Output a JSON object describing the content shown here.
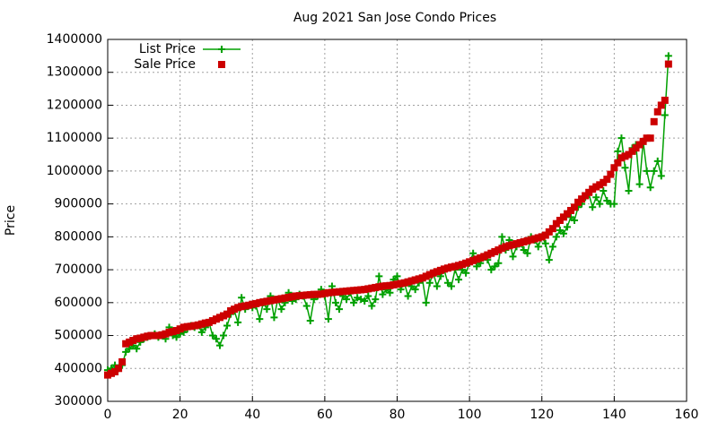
{
  "chart_data": {
    "type": "line",
    "title": "Aug 2021 San Jose Condo Prices",
    "ylabel": "Price",
    "x": [
      0,
      1,
      2,
      3,
      4,
      5,
      6,
      7,
      8,
      9,
      10,
      11,
      12,
      13,
      14,
      15,
      16,
      17,
      18,
      19,
      20,
      21,
      22,
      23,
      24,
      25,
      26,
      27,
      28,
      29,
      30,
      31,
      32,
      33,
      34,
      35,
      36,
      37,
      38,
      39,
      40,
      41,
      42,
      43,
      44,
      45,
      46,
      47,
      48,
      49,
      50,
      51,
      52,
      53,
      54,
      55,
      56,
      57,
      58,
      59,
      60,
      61,
      62,
      63,
      64,
      65,
      66,
      67,
      68,
      69,
      70,
      71,
      72,
      73,
      74,
      75,
      76,
      77,
      78,
      79,
      80,
      81,
      82,
      83,
      84,
      85,
      86,
      87,
      88,
      89,
      90,
      91,
      92,
      93,
      94,
      95,
      96,
      97,
      98,
      99,
      100,
      101,
      102,
      103,
      104,
      105,
      106,
      107,
      108,
      109,
      110,
      111,
      112,
      113,
      114,
      115,
      116,
      117,
      118,
      119,
      120,
      121,
      122,
      123,
      124,
      125,
      126,
      127,
      128,
      129,
      130,
      131,
      132,
      133,
      134,
      135,
      136,
      137,
      138,
      139,
      140,
      141,
      142,
      143,
      144,
      145,
      146,
      147,
      148,
      149,
      150,
      151,
      152,
      153,
      154,
      155
    ],
    "series": [
      {
        "name": "List Price",
        "color": "#00a000",
        "line": true,
        "marker": "plus",
        "values": [
          395000,
          400000,
          410000,
          400000,
          410000,
          450000,
          460000,
          470000,
          460000,
          480000,
          490000,
          495000,
          500000,
          505000,
          495000,
          500000,
          490000,
          525000,
          500000,
          495000,
          505000,
          510000,
          520000,
          530000,
          525000,
          530000,
          510000,
          525000,
          540000,
          500000,
          490000,
          470000,
          500000,
          530000,
          565000,
          575000,
          540000,
          615000,
          580000,
          590000,
          585000,
          590000,
          550000,
          600000,
          580000,
          620000,
          555000,
          610000,
          580000,
          600000,
          630000,
          605000,
          610000,
          625000,
          620000,
          590000,
          545000,
          610000,
          620000,
          640000,
          620000,
          550000,
          650000,
          600000,
          580000,
          620000,
          610000,
          630000,
          600000,
          615000,
          610000,
          605000,
          620000,
          590000,
          610000,
          680000,
          625000,
          640000,
          630000,
          670000,
          680000,
          640000,
          660000,
          620000,
          650000,
          640000,
          660000,
          670000,
          600000,
          660000,
          690000,
          650000,
          680000,
          700000,
          660000,
          650000,
          700000,
          670000,
          700000,
          690000,
          720000,
          750000,
          710000,
          720000,
          740000,
          730000,
          700000,
          710000,
          720000,
          800000,
          760000,
          790000,
          740000,
          770000,
          780000,
          760000,
          750000,
          800000,
          790000,
          770000,
          800000,
          780000,
          730000,
          770000,
          800000,
          820000,
          810000,
          830000,
          860000,
          850000,
          890000,
          900000,
          920000,
          930000,
          890000,
          920000,
          900000,
          940000,
          910000,
          900000,
          900000,
          1060000,
          1100000,
          1010000,
          940000,
          1070000,
          1080000,
          960000,
          1090000,
          1000000,
          950000,
          1000000,
          1030000,
          985000,
          1170000,
          1350000
        ]
      },
      {
        "name": "Sale Price",
        "color": "#cc0000",
        "line": false,
        "marker": "square",
        "values": [
          380000,
          385000,
          390000,
          400000,
          420000,
          475000,
          480000,
          485000,
          490000,
          492000,
          495000,
          498000,
          500000,
          500000,
          500000,
          502000,
          505000,
          510000,
          512000,
          515000,
          520000,
          525000,
          527000,
          528000,
          530000,
          532000,
          535000,
          538000,
          540000,
          545000,
          550000,
          555000,
          560000,
          565000,
          575000,
          580000,
          585000,
          588000,
          590000,
          592000,
          595000,
          597000,
          600000,
          602000,
          604000,
          606000,
          608000,
          610000,
          612000,
          614000,
          616000,
          618000,
          620000,
          621000,
          622000,
          623000,
          624000,
          625000,
          625000,
          626000,
          628000,
          630000,
          631000,
          632000,
          633000,
          634000,
          635000,
          636000,
          637000,
          638000,
          639000,
          640000,
          642000,
          644000,
          646000,
          648000,
          650000,
          651000,
          652000,
          654000,
          656000,
          658000,
          660000,
          663000,
          666000,
          669000,
          672000,
          675000,
          680000,
          685000,
          690000,
          694000,
          698000,
          702000,
          705000,
          708000,
          710000,
          713000,
          716000,
          720000,
          724000,
          728000,
          732000,
          736000,
          740000,
          745000,
          750000,
          755000,
          760000,
          765000,
          770000,
          773000,
          776000,
          779000,
          782000,
          785000,
          788000,
          791000,
          794000,
          797000,
          800000,
          805000,
          815000,
          825000,
          840000,
          850000,
          860000,
          870000,
          880000,
          890000,
          905000,
          915000,
          925000,
          935000,
          945000,
          952000,
          958000,
          965000,
          975000,
          990000,
          1010000,
          1025000,
          1040000,
          1045000,
          1050000,
          1060000,
          1070000,
          1080000,
          1090000,
          1100000,
          1100000,
          1150000,
          1180000,
          1200000,
          1215000,
          1325000
        ]
      }
    ],
    "xlim": [
      0,
      160
    ],
    "xticks": [
      0,
      20,
      40,
      60,
      80,
      100,
      120,
      140,
      160
    ],
    "ylim": [
      300000,
      1400000
    ],
    "yticks": [
      300000,
      400000,
      500000,
      600000,
      700000,
      800000,
      900000,
      1000000,
      1100000,
      1200000,
      1300000,
      1400000
    ],
    "grid": true,
    "legend": "top-left"
  }
}
